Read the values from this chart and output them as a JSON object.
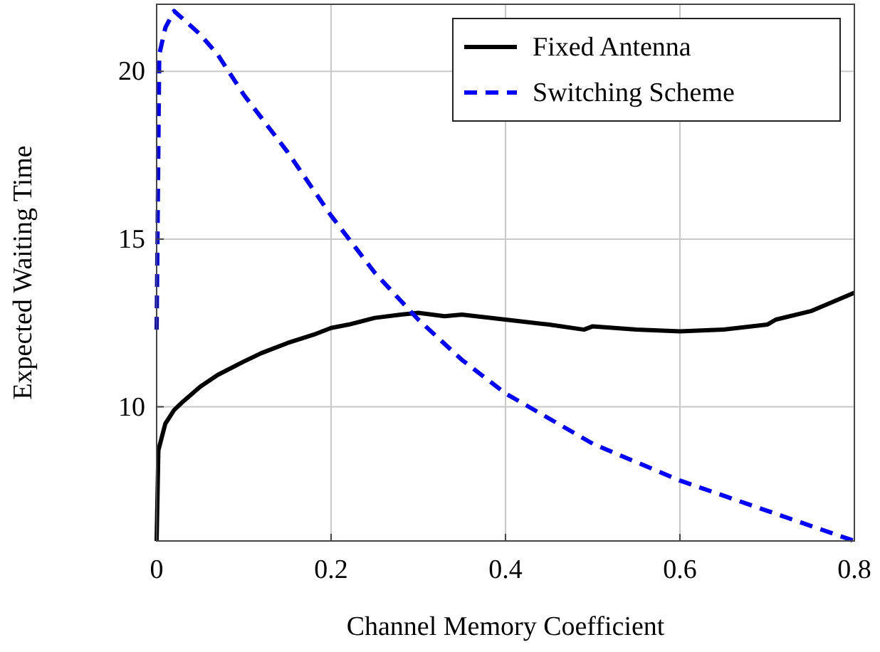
{
  "chart_data": {
    "type": "line",
    "xlabel": "Channel Memory Coefficient",
    "ylabel": "Expected Waiting Time",
    "xlim": [
      0,
      0.8
    ],
    "xticks": [
      0,
      0.2,
      0.4,
      0.6,
      0.8
    ],
    "ylim": [
      6,
      22
    ],
    "yticks": [
      10,
      15,
      20
    ],
    "grid": true,
    "legend": "top right",
    "series": [
      {
        "name": "Fixed Antenna",
        "color": "#000000",
        "line_style": "solid",
        "x": [
          0,
          0.002,
          0.01,
          0.02,
          0.03,
          0.05,
          0.07,
          0.1,
          0.12,
          0.15,
          0.18,
          0.2,
          0.22,
          0.25,
          0.28,
          0.3,
          0.33,
          0.35,
          0.4,
          0.45,
          0.49,
          0.5,
          0.55,
          0.6,
          0.65,
          0.7,
          0.71,
          0.75,
          0.8
        ],
        "values": [
          6,
          8.7,
          9.5,
          9.9,
          10.15,
          10.6,
          10.95,
          11.35,
          11.6,
          11.9,
          12.15,
          12.35,
          12.45,
          12.65,
          12.75,
          12.8,
          12.7,
          12.75,
          12.6,
          12.45,
          12.3,
          12.4,
          12.3,
          12.25,
          12.3,
          12.45,
          12.6,
          12.85,
          13.4
        ]
      },
      {
        "name": "Switching Scheme",
        "color": "#0000ff",
        "line_style": "dashed",
        "x": [
          0,
          0.003,
          0.01,
          0.02,
          0.05,
          0.07,
          0.1,
          0.15,
          0.2,
          0.25,
          0.3,
          0.35,
          0.4,
          0.5,
          0.6,
          0.7,
          0.8
        ],
        "values": [
          12.3,
          20.5,
          21.3,
          21.8,
          21.1,
          20.5,
          19.3,
          17.6,
          15.7,
          14.0,
          12.6,
          11.4,
          10.4,
          8.9,
          7.8,
          6.9,
          6.0
        ]
      }
    ]
  }
}
